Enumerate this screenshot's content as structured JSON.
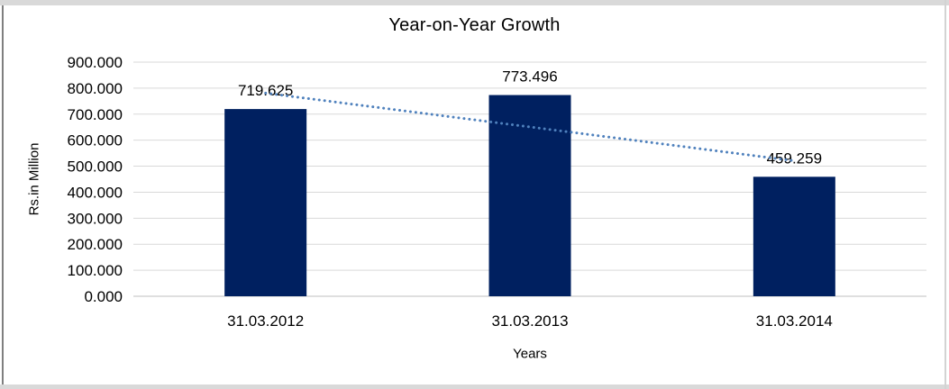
{
  "theme": {
    "band": "#d9d9d9",
    "left-line": "#7f7f7f",
    "right-line": "#d3d3d3"
  },
  "chart_data": {
    "type": "bar",
    "title": "Year-on-Year Growth",
    "xlabel": "Years",
    "ylabel": "Rs.in Million",
    "categories": [
      "31.03.2012",
      "31.03.2013",
      "31.03.2014"
    ],
    "values": [
      719.625,
      773.496,
      459.259
    ],
    "data_labels": [
      "719.625",
      "773.496",
      "459.259"
    ],
    "ylim": [
      0,
      900
    ],
    "ytick_step": 100,
    "ytick_labels": [
      "0.000",
      "100.000",
      "200.000",
      "300.000",
      "400.000",
      "500.000",
      "600.000",
      "700.000",
      "800.000",
      "900.000"
    ],
    "grid": true,
    "legend": false,
    "bar_color": "#002060",
    "gridline_color": "#d9d9d9",
    "axis_line_color": "#bfbfbf",
    "text_color": "#000000",
    "trendline": {
      "type": "linear",
      "style": "dotted",
      "color": "#4F81BD"
    }
  }
}
